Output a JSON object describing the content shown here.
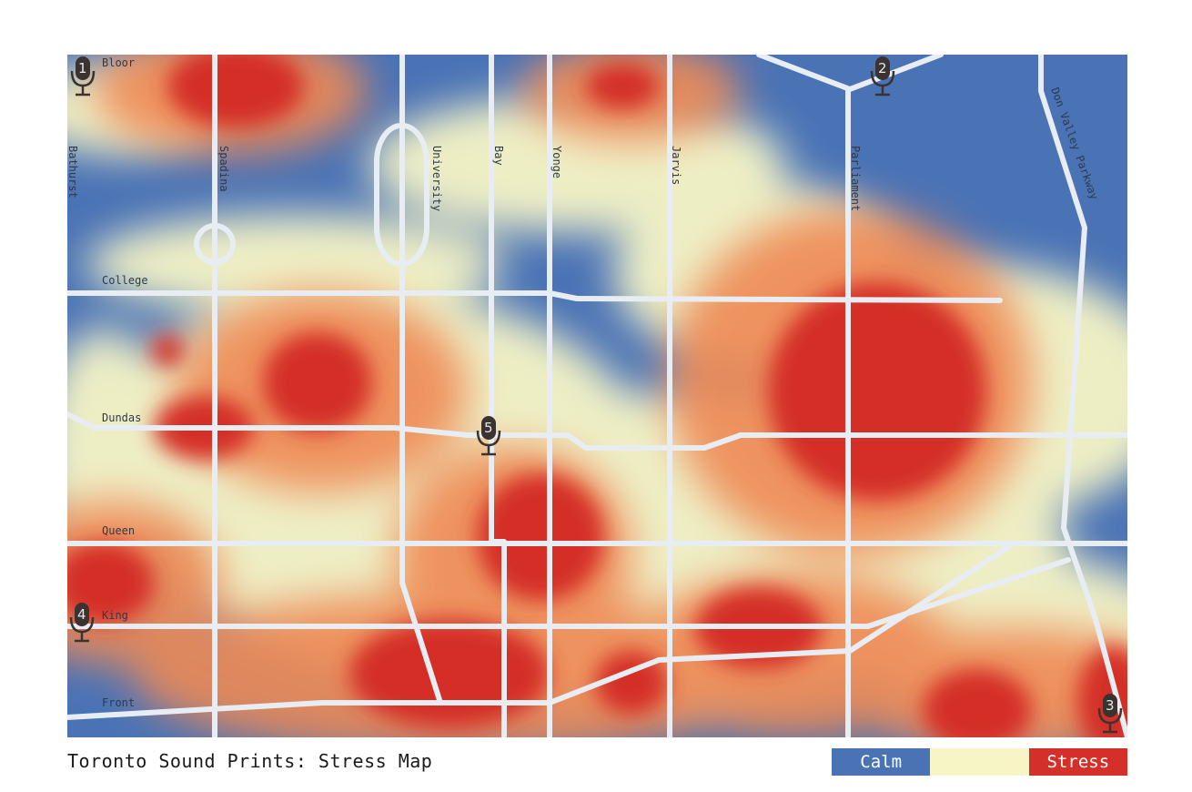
{
  "map": {
    "title": "Toronto Sound Prints: Stress Map",
    "colors": {
      "calm": "#4a73b6",
      "neutral": "#f7f5c6",
      "stress": "#d42f28",
      "roads": "#e8edf3"
    },
    "streets": {
      "bloor": "Bloor",
      "college": "College",
      "dundas": "Dundas",
      "queen": "Queen",
      "king": "King",
      "front": "Front",
      "bathurst": "Bathurst",
      "spadina": "Spadina",
      "university": "University",
      "bay": "Bay",
      "yonge": "Yonge",
      "jarvis": "Jarvis",
      "parliament": "Parliament",
      "don_valley": "Don Valley Parkway"
    },
    "microphones": [
      {
        "number": "1",
        "icon": "microphone-icon"
      },
      {
        "number": "2",
        "icon": "microphone-icon"
      },
      {
        "number": "3",
        "icon": "microphone-icon"
      },
      {
        "number": "4",
        "icon": "microphone-icon"
      },
      {
        "number": "5",
        "icon": "microphone-icon"
      }
    ],
    "legend": {
      "calm_label": "Calm",
      "neutral_label": "",
      "stress_label": "Stress"
    }
  }
}
